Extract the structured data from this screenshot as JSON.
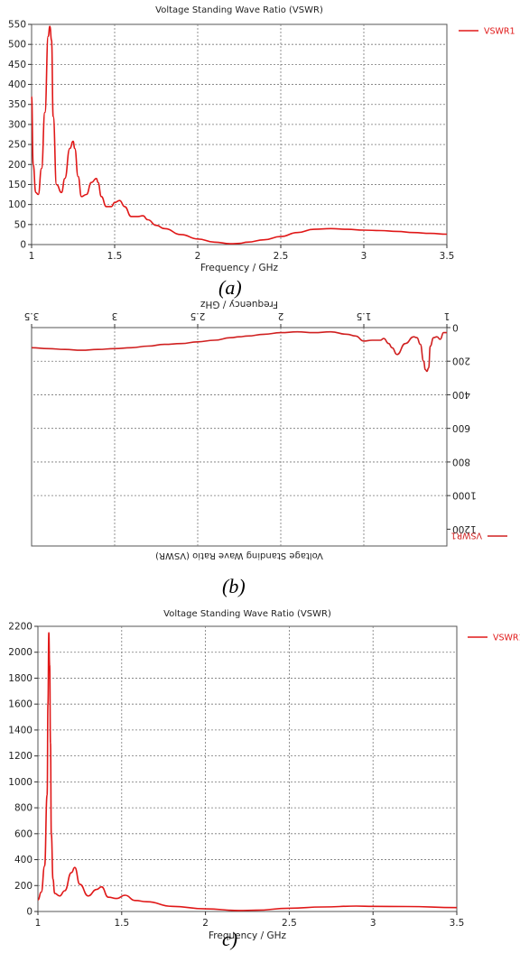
{
  "captions": [
    "(a)",
    "(b)",
    "c)"
  ],
  "chart_data": [
    {
      "type": "line",
      "title": "Voltage Standing Wave Ratio (VSWR)",
      "xlabel": "Frequency / GHz",
      "ylabel": "",
      "xlim": [
        1,
        3.5
      ],
      "ylim": [
        0,
        550
      ],
      "xticks": [
        1,
        1.5,
        2,
        2.5,
        3,
        3.5
      ],
      "xtick_labels": [
        "1",
        "1.5",
        "2",
        "2.5",
        "3",
        "3.5"
      ],
      "yticks": [
        0,
        50,
        100,
        150,
        200,
        250,
        300,
        350,
        400,
        450,
        500,
        550
      ],
      "ytick_labels": [
        "0",
        "50",
        "100",
        "150",
        "200",
        "250",
        "300",
        "350",
        "400",
        "450",
        "500",
        "550"
      ],
      "grid": true,
      "legend": "right",
      "orientation": "normal",
      "color": "#e01818",
      "series": [
        {
          "name": "VSWR1",
          "x": [
            1.0,
            1.01,
            1.025,
            1.04,
            1.06,
            1.08,
            1.1,
            1.11,
            1.12,
            1.13,
            1.15,
            1.18,
            1.2,
            1.23,
            1.25,
            1.26,
            1.28,
            1.3,
            1.33,
            1.36,
            1.39,
            1.4,
            1.42,
            1.45,
            1.48,
            1.5,
            1.53,
            1.56,
            1.6,
            1.64,
            1.67,
            1.7,
            1.75,
            1.8,
            1.9,
            2.0,
            2.1,
            2.2,
            2.25,
            2.3,
            2.4,
            2.5,
            2.6,
            2.7,
            2.8,
            2.9,
            3.0,
            3.1,
            3.2,
            3.3,
            3.4,
            3.5
          ],
          "y": [
            370,
            200,
            130,
            125,
            190,
            330,
            520,
            545,
            510,
            320,
            150,
            130,
            165,
            240,
            258,
            240,
            170,
            120,
            125,
            155,
            165,
            155,
            120,
            95,
            95,
            105,
            110,
            95,
            70,
            70,
            72,
            62,
            48,
            40,
            25,
            14,
            6,
            2,
            3,
            6,
            12,
            20,
            30,
            38,
            40,
            38,
            36,
            35,
            33,
            30,
            28,
            26
          ]
        }
      ]
    },
    {
      "type": "line",
      "title": "Voltage Standing Wave Ratio (VSWR)",
      "xlabel": "Frequency / GHz",
      "ylabel": "",
      "xlim": [
        1,
        3.5
      ],
      "ylim": [
        0,
        1300
      ],
      "xticks": [
        1,
        1.5,
        2,
        2.5,
        3,
        3.5
      ],
      "xtick_labels": [
        "1",
        "1.5",
        "2",
        "2.5",
        "3",
        "3.5"
      ],
      "yticks": [
        0,
        200,
        400,
        600,
        800,
        1000,
        1200
      ],
      "ytick_labels": [
        "0",
        "200",
        "400",
        "600",
        "800",
        "1000",
        "1200"
      ],
      "grid": true,
      "legend": "right",
      "orientation": "rotated-180",
      "color": "#d02020",
      "series": [
        {
          "name": "VSWR1",
          "x": [
            1.0,
            1.02,
            1.04,
            1.06,
            1.08,
            1.1,
            1.11,
            1.12,
            1.13,
            1.14,
            1.16,
            1.18,
            1.2,
            1.25,
            1.3,
            1.33,
            1.35,
            1.38,
            1.4,
            1.45,
            1.5,
            1.55,
            1.6,
            1.7,
            1.8,
            1.9,
            2.0,
            2.1,
            2.2,
            2.25,
            2.3,
            2.4,
            2.5,
            2.6,
            2.7,
            2.8,
            2.9,
            3.0,
            3.1,
            3.2,
            3.3,
            3.4,
            3.5
          ],
          "y": [
            30,
            30,
            70,
            55,
            60,
            110,
            240,
            260,
            250,
            200,
            100,
            60,
            55,
            95,
            160,
            120,
            95,
            65,
            75,
            75,
            80,
            50,
            40,
            25,
            30,
            25,
            30,
            40,
            50,
            55,
            60,
            75,
            85,
            95,
            100,
            110,
            120,
            125,
            130,
            135,
            130,
            125,
            120
          ]
        }
      ]
    },
    {
      "type": "line",
      "title": "Voltage Standing Wave Ratio (VSWR)",
      "xlabel": "Frequency / GHz",
      "ylabel": "",
      "xlim": [
        1,
        3.5
      ],
      "ylim": [
        0,
        2200
      ],
      "xticks": [
        1,
        1.5,
        2,
        2.5,
        3,
        3.5
      ],
      "xtick_labels": [
        "1",
        "1.5",
        "2",
        "2.5",
        "3",
        "3.5"
      ],
      "yticks": [
        0,
        200,
        400,
        600,
        800,
        1000,
        1200,
        1400,
        1600,
        1800,
        2000,
        2200
      ],
      "ytick_labels": [
        "0",
        "200",
        "400",
        "600",
        "800",
        "1000",
        "1200",
        "1400",
        "1600",
        "1800",
        "2000",
        "2200"
      ],
      "grid": true,
      "legend": "right",
      "orientation": "normal",
      "color": "#e01818",
      "series": [
        {
          "name": "VSWR1",
          "x": [
            1.0,
            1.02,
            1.04,
            1.055,
            1.06,
            1.065,
            1.07,
            1.075,
            1.08,
            1.09,
            1.1,
            1.13,
            1.16,
            1.2,
            1.22,
            1.25,
            1.3,
            1.35,
            1.38,
            1.42,
            1.47,
            1.52,
            1.58,
            1.65,
            1.8,
            2.0,
            2.2,
            2.3,
            2.5,
            2.7,
            2.9,
            3.0,
            3.2,
            3.5
          ],
          "y": [
            90,
            150,
            350,
            900,
            1600,
            2150,
            1900,
            1300,
            600,
            250,
            140,
            120,
            160,
            300,
            340,
            210,
            120,
            170,
            190,
            110,
            100,
            125,
            85,
            75,
            40,
            20,
            8,
            10,
            25,
            35,
            42,
            40,
            38,
            30
          ]
        }
      ]
    }
  ]
}
